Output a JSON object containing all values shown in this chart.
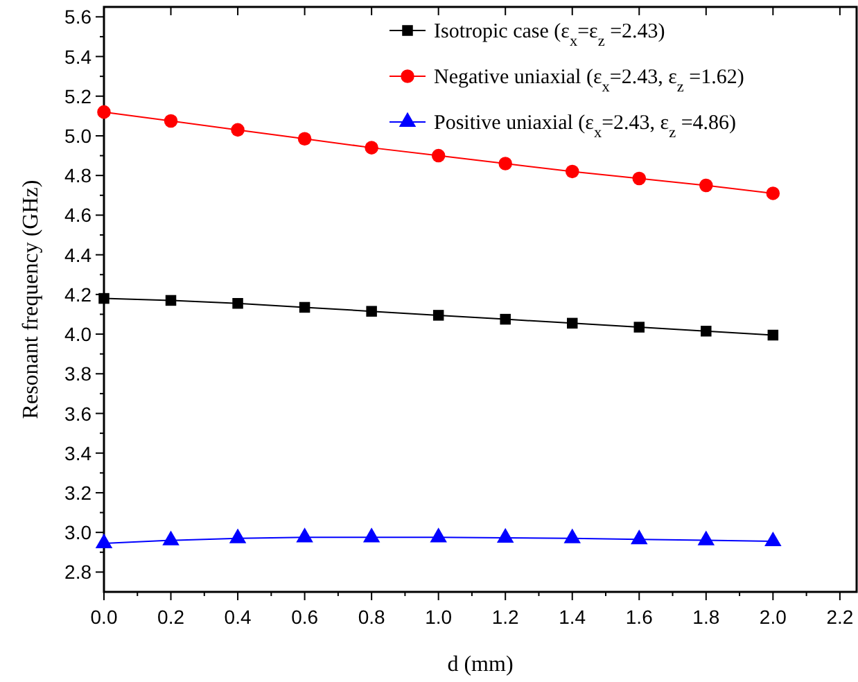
{
  "chart_data": {
    "type": "line",
    "xlabel": "d (mm)",
    "ylabel": "Resonant frequency (GHz)",
    "x": [
      0,
      0.2,
      0.4,
      0.6,
      0.8,
      1.0,
      1.2,
      1.4,
      1.6,
      1.8,
      2.0
    ],
    "series": [
      {
        "name": "Isotropic case (ε$_{x}$=ε$_{z}$ =2.43)",
        "color": "#000000",
        "marker": "square",
        "values": [
          4.18,
          4.17,
          4.155,
          4.135,
          4.115,
          4.095,
          4.075,
          4.055,
          4.035,
          4.015,
          3.995
        ]
      },
      {
        "name": "Negative uniaxial (ε$_{x}$=2.43, ε$_{z}$ =1.62)",
        "color": "#ff0000",
        "marker": "circle",
        "values": [
          5.12,
          5.075,
          5.03,
          4.985,
          4.94,
          4.9,
          4.86,
          4.82,
          4.785,
          4.75,
          4.71
        ]
      },
      {
        "name": "Positive uniaxial (ε$_{x}$=2.43, ε$_{z}$ =4.86)",
        "color": "#0000ff",
        "marker": "triangle",
        "values": [
          2.945,
          2.96,
          2.97,
          2.975,
          2.975,
          2.975,
          2.973,
          2.97,
          2.965,
          2.96,
          2.955
        ]
      }
    ],
    "xlim": [
      0,
      2.25
    ],
    "ylim": [
      2.7,
      5.65
    ],
    "xticks": [
      {
        "value": 0,
        "label": "0.0"
      },
      0.2,
      0.4,
      0.6,
      0.8,
      {
        "value": 1,
        "label": "1.0"
      },
      1.2,
      1.4,
      1.6,
      1.8,
      {
        "value": 2,
        "label": "2.0"
      },
      2.2
    ],
    "yticks": [
      2.8,
      {
        "value": 3,
        "label": "3.0"
      },
      3.2,
      3.4,
      3.6,
      3.8,
      {
        "value": 4,
        "label": "4.0"
      },
      4.2,
      4.4,
      4.6,
      4.8,
      {
        "value": 5,
        "label": "5.0"
      },
      5.2,
      5.4,
      5.6
    ],
    "grid": false,
    "legend": "top right",
    "line_style": "solid"
  }
}
